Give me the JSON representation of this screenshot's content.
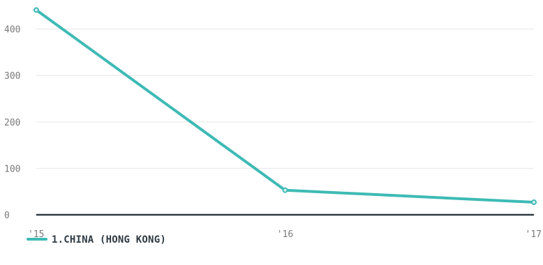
{
  "colors": {
    "series": "#3ebab5",
    "grid": "#e6e6e6",
    "baseline": "#2f3a43",
    "tick_text": "#7a7a7a",
    "legend_text": "#2f3a43"
  },
  "chart_data": {
    "type": "line",
    "title": "",
    "xlabel": "",
    "ylabel": "",
    "x": [
      "'15",
      "'16",
      "'17"
    ],
    "ylim": [
      0,
      440
    ],
    "yticks": [
      0,
      100,
      200,
      300,
      400
    ],
    "grid": true,
    "legend_position": "bottom-left",
    "series": [
      {
        "name": "1.CHINA (HONG KONG)",
        "values": [
          441,
          53,
          27
        ]
      }
    ]
  }
}
